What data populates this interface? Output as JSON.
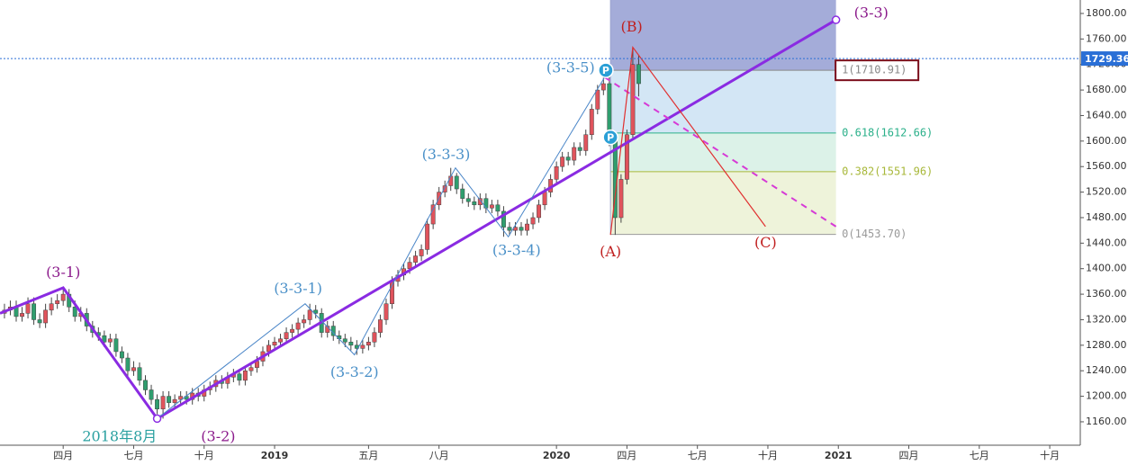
{
  "chart_data": {
    "type": "candlestick",
    "x": [
      0.5,
      0.75,
      1,
      1.25,
      1.5,
      1.75,
      2,
      2.25,
      2.5,
      2.75,
      3,
      3.25,
      3.5,
      3.75,
      4,
      4.25,
      4.5,
      4.75,
      5,
      5.25,
      5.5,
      5.75,
      6,
      6.25,
      6.5,
      6.75,
      7,
      7.25,
      7.5,
      7.75,
      8,
      8.25,
      8.5,
      8.75,
      9,
      9.25,
      9.5,
      9.75,
      10,
      10.25,
      10.5,
      10.75,
      11,
      11.25,
      11.5,
      11.75,
      12,
      12.25,
      12.5,
      12.75,
      13,
      13.25,
      13.5,
      13.75,
      14,
      14.25,
      14.5,
      14.75,
      15,
      15.25,
      15.5,
      15.75,
      16,
      16.25,
      16.5,
      16.75,
      17,
      17.25,
      17.5,
      17.75,
      18,
      18.25,
      18.5,
      18.75,
      19,
      19.25,
      19.5,
      19.75,
      20,
      20.25,
      20.5,
      20.75,
      21,
      21.25,
      21.5,
      21.75,
      22,
      22.25,
      22.5,
      22.75,
      23,
      23.25,
      23.5,
      23.75,
      24,
      24.25,
      24.5,
      24.75,
      25,
      25.25,
      25.5,
      25.75,
      26,
      26.25,
      26.5,
      26.75,
      27,
      27.25,
      27.5
    ],
    "open": [
      1330,
      1335,
      1340,
      1325,
      1330,
      1345,
      1320,
      1315,
      1335,
      1345,
      1350,
      1360,
      1340,
      1325,
      1330,
      1310,
      1300,
      1295,
      1285,
      1290,
      1270,
      1260,
      1240,
      1245,
      1225,
      1210,
      1195,
      1180,
      1200,
      1190,
      1195,
      1200,
      1195,
      1205,
      1200,
      1210,
      1215,
      1225,
      1220,
      1230,
      1235,
      1225,
      1240,
      1245,
      1255,
      1270,
      1280,
      1285,
      1290,
      1300,
      1305,
      1315,
      1320,
      1335,
      1330,
      1300,
      1310,
      1295,
      1290,
      1285,
      1280,
      1275,
      1280,
      1285,
      1300,
      1320,
      1345,
      1380,
      1390,
      1400,
      1410,
      1420,
      1430,
      1470,
      1500,
      1520,
      1530,
      1545,
      1525,
      1510,
      1505,
      1500,
      1510,
      1495,
      1500,
      1490,
      1465,
      1460,
      1465,
      1460,
      1470,
      1480,
      1500,
      1520,
      1540,
      1560,
      1575,
      1570,
      1590,
      1585,
      1610,
      1650,
      1680,
      1690,
      1600,
      1480,
      1540,
      1610,
      1720
    ],
    "high": [
      1345,
      1350,
      1350,
      1340,
      1355,
      1355,
      1330,
      1345,
      1355,
      1360,
      1370,
      1368,
      1350,
      1340,
      1338,
      1318,
      1308,
      1303,
      1298,
      1298,
      1278,
      1268,
      1255,
      1253,
      1233,
      1218,
      1203,
      1208,
      1208,
      1203,
      1208,
      1208,
      1213,
      1213,
      1218,
      1223,
      1233,
      1233,
      1238,
      1243,
      1243,
      1248,
      1253,
      1263,
      1278,
      1288,
      1293,
      1298,
      1308,
      1313,
      1323,
      1328,
      1345,
      1343,
      1338,
      1318,
      1318,
      1303,
      1298,
      1293,
      1288,
      1288,
      1293,
      1308,
      1328,
      1353,
      1388,
      1398,
      1408,
      1418,
      1428,
      1438,
      1478,
      1508,
      1528,
      1538,
      1558,
      1550,
      1533,
      1518,
      1513,
      1518,
      1518,
      1508,
      1508,
      1498,
      1473,
      1473,
      1473,
      1478,
      1488,
      1508,
      1528,
      1548,
      1568,
      1583,
      1583,
      1598,
      1598,
      1618,
      1658,
      1688,
      1700,
      1700,
      1610,
      1548,
      1618,
      1747,
      1735
    ],
    "low": [
      1322,
      1327,
      1317,
      1317,
      1322,
      1312,
      1307,
      1307,
      1327,
      1337,
      1342,
      1332,
      1317,
      1317,
      1302,
      1292,
      1287,
      1277,
      1277,
      1262,
      1252,
      1232,
      1232,
      1217,
      1202,
      1187,
      1172,
      1165,
      1182,
      1182,
      1187,
      1187,
      1187,
      1192,
      1192,
      1202,
      1207,
      1212,
      1212,
      1222,
      1217,
      1217,
      1232,
      1237,
      1247,
      1262,
      1272,
      1277,
      1282,
      1292,
      1297,
      1307,
      1312,
      1322,
      1292,
      1292,
      1287,
      1282,
      1277,
      1272,
      1265,
      1267,
      1272,
      1277,
      1292,
      1312,
      1337,
      1372,
      1382,
      1392,
      1402,
      1412,
      1422,
      1462,
      1492,
      1512,
      1522,
      1517,
      1502,
      1497,
      1492,
      1492,
      1487,
      1487,
      1482,
      1450,
      1452,
      1452,
      1452,
      1452,
      1462,
      1472,
      1492,
      1512,
      1532,
      1552,
      1562,
      1562,
      1577,
      1577,
      1602,
      1642,
      1672,
      1592,
      1453,
      1472,
      1532,
      1602,
      1670
    ],
    "close": [
      1335,
      1340,
      1325,
      1330,
      1345,
      1320,
      1315,
      1335,
      1345,
      1350,
      1360,
      1340,
      1325,
      1330,
      1310,
      1300,
      1295,
      1285,
      1290,
      1270,
      1260,
      1240,
      1245,
      1225,
      1210,
      1195,
      1180,
      1200,
      1190,
      1195,
      1200,
      1195,
      1205,
      1200,
      1210,
      1215,
      1225,
      1220,
      1230,
      1235,
      1225,
      1240,
      1245,
      1255,
      1270,
      1280,
      1285,
      1290,
      1300,
      1305,
      1315,
      1320,
      1335,
      1330,
      1300,
      1310,
      1295,
      1290,
      1285,
      1280,
      1275,
      1280,
      1285,
      1300,
      1320,
      1345,
      1380,
      1390,
      1400,
      1410,
      1420,
      1430,
      1470,
      1500,
      1520,
      1530,
      1545,
      1525,
      1510,
      1505,
      1500,
      1510,
      1495,
      1500,
      1490,
      1465,
      1460,
      1465,
      1460,
      1470,
      1480,
      1500,
      1520,
      1540,
      1560,
      1575,
      1570,
      1590,
      1585,
      1610,
      1650,
      1680,
      1690,
      1600,
      1480,
      1540,
      1610,
      1720,
      1690
    ],
    "up_color": "#e0535c",
    "down_color": "#2f9e6e",
    "xlim": [
      0.31,
      46.3
    ],
    "ylim": [
      1123.3,
      1821.1
    ],
    "xticks": [
      {
        "value": 3,
        "label": "四月"
      },
      {
        "value": 6,
        "label": "七月"
      },
      {
        "value": 9,
        "label": "十月"
      },
      {
        "value": 12,
        "label": "2019"
      },
      {
        "value": 16,
        "label": "五月"
      },
      {
        "value": 19,
        "label": "八月"
      },
      {
        "value": 24,
        "label": "2020"
      },
      {
        "value": 27,
        "label": "四月"
      },
      {
        "value": 30,
        "label": "七月"
      },
      {
        "value": 33,
        "label": "十月"
      },
      {
        "value": 36,
        "label": "2021"
      },
      {
        "value": 39,
        "label": "四月"
      },
      {
        "value": 42,
        "label": "七月"
      },
      {
        "value": 45,
        "label": "十月"
      }
    ],
    "yticks": [
      {
        "value": 1160,
        "label": "1160.00"
      },
      {
        "value": 1200,
        "label": "1200.00"
      },
      {
        "value": 1240,
        "label": "1240.00"
      },
      {
        "value": 1280,
        "label": "1280.00"
      },
      {
        "value": 1320,
        "label": "1320.00"
      },
      {
        "value": 1360,
        "label": "1360.00"
      },
      {
        "value": 1400,
        "label": "1400.00"
      },
      {
        "value": 1440,
        "label": "1440.00"
      },
      {
        "value": 1480,
        "label": "1480.00"
      },
      {
        "value": 1520,
        "label": "1520.00"
      },
      {
        "value": 1560,
        "label": "1560.00"
      },
      {
        "value": 1600,
        "label": "1600.00"
      },
      {
        "value": 1640,
        "label": "1640.00"
      },
      {
        "value": 1680,
        "label": "1680.00"
      },
      {
        "value": 1720,
        "label": "1720.00"
      },
      {
        "value": 1760,
        "label": "1760.00"
      },
      {
        "value": 1800,
        "label": "1800.00"
      }
    ],
    "last_price": 1729.36,
    "last_price_color": "#2a6fd6",
    "fib_x": [
      26.3,
      35.9
    ],
    "fib_levels": [
      {
        "value": 1453.7,
        "label": "0(1453.70)",
        "color": "#9a9a9a",
        "zone_color": "#eef3da"
      },
      {
        "value": 1551.96,
        "label": "0.382(1551.96)",
        "color": "#a8b83a",
        "zone_color": "#dcf2e8"
      },
      {
        "value": 1612.66,
        "label": "0.618(1612.66)",
        "color": "#2bb08a",
        "zone_color": "#d3e6f5"
      },
      {
        "value": 1710.91,
        "label": "1(1710.91)",
        "color": "#888888",
        "zone_color": "#a4acd9"
      }
    ],
    "lines": [
      {
        "color": "#8a2be2",
        "width": 3,
        "dash": "",
        "x": [
          0.31,
          3.0,
          7.0,
          35.9
        ],
        "y": [
          1330,
          1370,
          1165,
          1790
        ]
      },
      {
        "color": "#4a86c8",
        "width": 1,
        "dash": "",
        "x": [
          7.0,
          13.3,
          15.4,
          19.7,
          21.95,
          26.05
        ],
        "y": [
          1165,
          1345,
          1265,
          1558,
          1450,
          1700
        ]
      },
      {
        "color": "#d63ad6",
        "width": 2,
        "dash": "7,6",
        "x": [
          26.05,
          35.9
        ],
        "y": [
          1700,
          1466
        ]
      },
      {
        "color": "#e03030",
        "width": 1.2,
        "dash": "",
        "x": [
          26.3,
          27.25,
          32.9
        ],
        "y": [
          1453,
          1747,
          1466
        ]
      }
    ],
    "annotations": [
      {
        "text": "(3-1)",
        "x": 3.0,
        "y": 1393,
        "color": "#8b1a8b"
      },
      {
        "text": "2018年8月",
        "x": 5.4,
        "y": 1136,
        "color": "#2aa0a0"
      },
      {
        "text": "(3-2)",
        "x": 9.6,
        "y": 1136,
        "color": "#8b1a8b"
      },
      {
        "text": "(3-3-1)",
        "x": 13.0,
        "y": 1368,
        "color": "#4a90c8"
      },
      {
        "text": "(3-3-2)",
        "x": 15.4,
        "y": 1237,
        "color": "#4a90c8"
      },
      {
        "text": "(3-3-3)",
        "x": 19.3,
        "y": 1578,
        "color": "#4a90c8"
      },
      {
        "text": "(3-3-4)",
        "x": 22.3,
        "y": 1428,
        "color": "#4a90c8"
      },
      {
        "text": "(3-3-5)",
        "x": 24.6,
        "y": 1714,
        "color": "#4a90c8"
      },
      {
        "text": "(A)",
        "x": 26.3,
        "y": 1426,
        "color": "#c02020"
      },
      {
        "text": "(B)",
        "x": 27.2,
        "y": 1778,
        "color": "#c02020"
      },
      {
        "text": "(C)",
        "x": 32.9,
        "y": 1440,
        "color": "#c02020"
      },
      {
        "text": "(3-3)",
        "x": 37.4,
        "y": 1800,
        "color": "#8b1a8b"
      }
    ],
    "badges": [
      {
        "text": "P",
        "x": 26.1,
        "y": 1711
      },
      {
        "text": "P",
        "x": 26.3,
        "y": 1606
      }
    ]
  }
}
